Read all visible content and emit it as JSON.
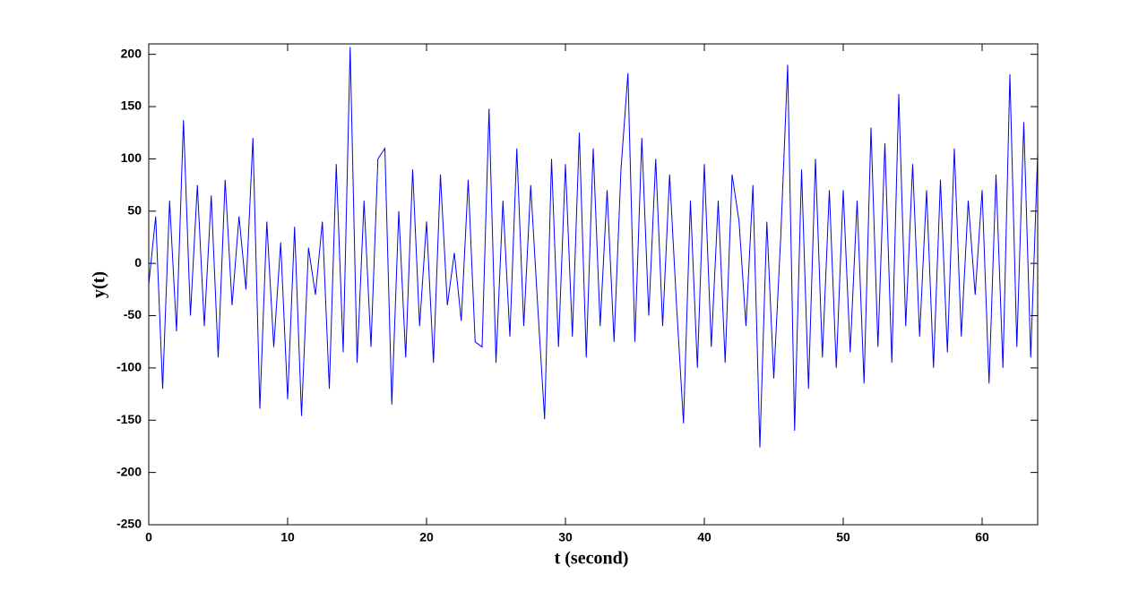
{
  "chart_data": {
    "type": "line",
    "x_label": "t (second)",
    "y_label": "y(t)",
    "xlim": [
      0,
      64
    ],
    "ylim": [
      -250,
      210
    ],
    "xticks": [
      0,
      10,
      20,
      30,
      40,
      50,
      60
    ],
    "yticks": [
      -250,
      -200,
      -150,
      -100,
      -50,
      0,
      50,
      100,
      150,
      200
    ],
    "grid": false,
    "series": [
      {
        "color": "#0000ff",
        "x": [
          0,
          0.5,
          1,
          1.5,
          2,
          2.5,
          3,
          3.5,
          4,
          4.5,
          5,
          5.5,
          6,
          6.5,
          7,
          7.5,
          8,
          8.5,
          9,
          9.5,
          10,
          10.5,
          11,
          11.5,
          12,
          12.5,
          13,
          13.5,
          14,
          14.5,
          15,
          15.5,
          16,
          16.5,
          17,
          17.5,
          18,
          18.5,
          19,
          19.5,
          20,
          20.5,
          21,
          21.5,
          22,
          22.5,
          23,
          23.5,
          24,
          24.5,
          25,
          25.5,
          26,
          26.5,
          27,
          27.5,
          28,
          28.5,
          29,
          29.5,
          30,
          30.5,
          31,
          31.5,
          32,
          32.5,
          33,
          33.5,
          34,
          34.5,
          35,
          35.5,
          36,
          36.5,
          37,
          37.5,
          38,
          38.5,
          39,
          39.5,
          40,
          40.5,
          41,
          41.5,
          42,
          42.5,
          43,
          43.5,
          44,
          44.5,
          45,
          45.5,
          46,
          46.5,
          47,
          47.5,
          48,
          48.5,
          49,
          49.5,
          50,
          50.5,
          51,
          51.5,
          52,
          52.5,
          53,
          53.5,
          54,
          54.5,
          55,
          55.5,
          56,
          56.5,
          57,
          57.5,
          58,
          58.5,
          59,
          59.5,
          60,
          60.5,
          61,
          61.5,
          62,
          62.5,
          63,
          63.5,
          64
        ],
        "values": [
          -20,
          45,
          -120,
          60,
          -65,
          137,
          -50,
          75,
          -60,
          65,
          -90,
          80,
          -40,
          45,
          -25,
          120,
          -139,
          40,
          -80,
          20,
          -130,
          35,
          -146,
          15,
          -30,
          40,
          -120,
          95,
          -85,
          207,
          -95,
          60,
          -80,
          100,
          110,
          -135,
          50,
          -90,
          90,
          -60,
          40,
          -95,
          85,
          -40,
          10,
          -55,
          80,
          -75,
          -80,
          148,
          -95,
          60,
          -70,
          110,
          -60,
          75,
          -40,
          -149,
          100,
          -80,
          95,
          -70,
          125,
          -90,
          110,
          -60,
          70,
          -75,
          90,
          182,
          -75,
          120,
          -50,
          100,
          -60,
          85,
          -40,
          -153,
          60,
          -100,
          95,
          -80,
          60,
          -95,
          85,
          40,
          -60,
          75,
          -176,
          40,
          -110,
          25,
          190,
          -160,
          90,
          -120,
          100,
          -90,
          70,
          -100,
          70,
          -85,
          60,
          -115,
          130,
          -80,
          115,
          -95,
          162,
          -60,
          95,
          -70,
          70,
          -100,
          80,
          -85,
          110,
          -70,
          60,
          -30,
          70,
          -115,
          85,
          -100,
          181,
          -80,
          135,
          -90,
          105
        ]
      }
    ]
  }
}
